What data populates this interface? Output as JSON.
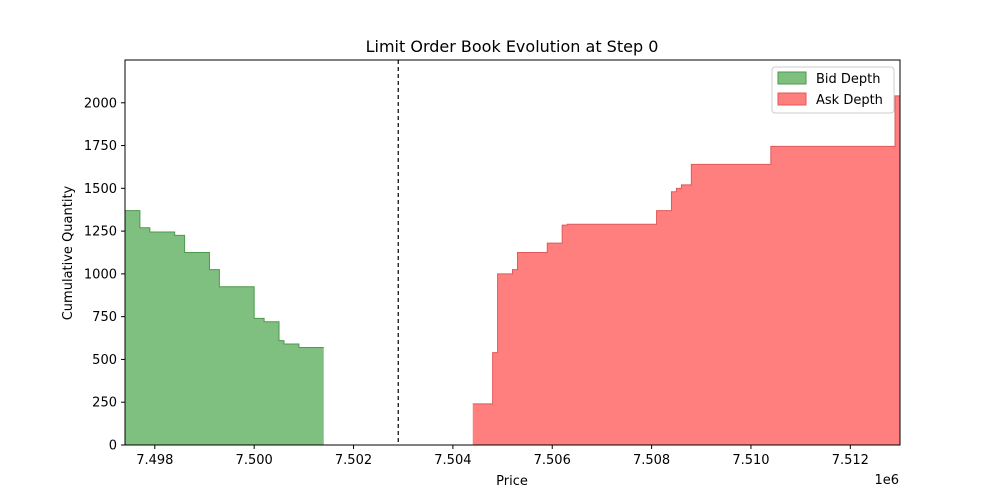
{
  "chart_data": {
    "type": "area",
    "title": "Limit Order Book Evolution at Step 0",
    "xlabel": "Price",
    "ylabel": "Cumulative Quantity",
    "x_offset_label": "1e6",
    "xlim": [
      7497.4,
      7513.0
    ],
    "ylim": [
      0,
      2250
    ],
    "x_ticks": [
      7498,
      7500,
      7502,
      7504,
      7506,
      7508,
      7510,
      7512
    ],
    "x_tick_labels": [
      "7.498",
      "7.500",
      "7.502",
      "7.504",
      "7.506",
      "7.508",
      "7.510",
      "7.512"
    ],
    "y_ticks": [
      0,
      250,
      500,
      750,
      1000,
      1250,
      1500,
      1750,
      2000
    ],
    "y_tick_labels": [
      "0",
      "250",
      "500",
      "750",
      "1000",
      "1250",
      "1500",
      "1750",
      "2000"
    ],
    "mid_price": 7502.9,
    "legend_position": "top-right",
    "series": [
      {
        "name": "Bid Depth",
        "color": "#7fbf7f",
        "edge": "#4c9a4c",
        "x": [
          7497.4,
          7497.7,
          7497.9,
          7498.4,
          7498.6,
          7499.1,
          7499.3,
          7499.9,
          7500.0,
          7500.2,
          7500.5,
          7500.6,
          7500.9,
          7501.4
        ],
        "y": [
          1370,
          1270,
          1245,
          1225,
          1125,
          1025,
          925,
          925,
          740,
          720,
          610,
          590,
          570,
          570
        ]
      },
      {
        "name": "Ask Depth",
        "color": "#ff7f7f",
        "edge": "#e05a5a",
        "x": [
          7504.4,
          7504.8,
          7504.9,
          7505.2,
          7505.3,
          7505.9,
          7506.2,
          7506.3,
          7508.1,
          7508.4,
          7508.5,
          7508.6,
          7508.8,
          7510.4,
          7512.9,
          7513.0
        ],
        "y": [
          240,
          540,
          1000,
          1025,
          1125,
          1180,
          1285,
          1290,
          1370,
          1480,
          1500,
          1520,
          1640,
          1745,
          2040,
          2040
        ]
      }
    ]
  }
}
